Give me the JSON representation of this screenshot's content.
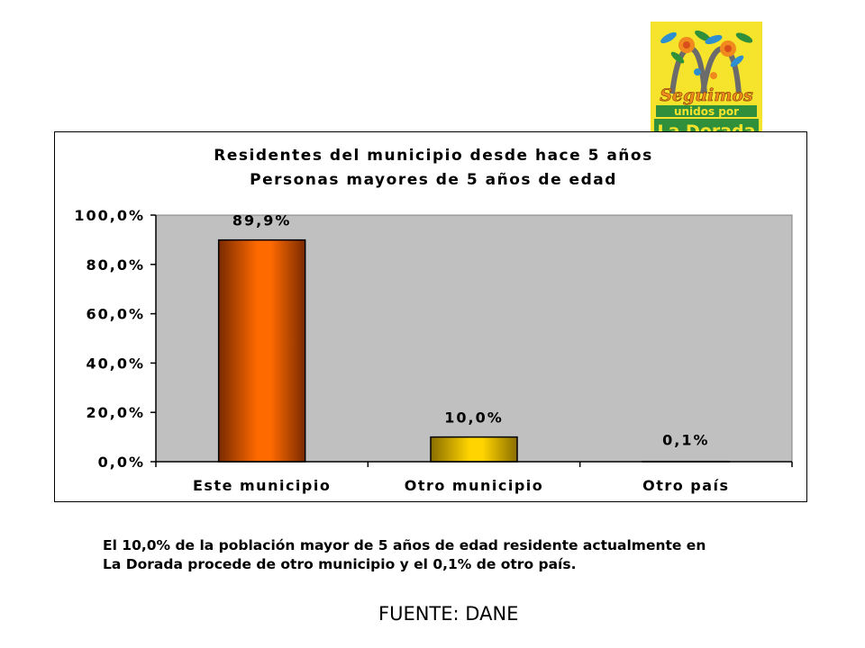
{
  "logo": {
    "line1": "Seguimos",
    "line2": "unidos por",
    "line3": "La Dorada",
    "colors": {
      "background": "#f6e32b",
      "green": "#2f8f3a",
      "orange": "#f08a1e",
      "blue": "#2e8fd0"
    }
  },
  "chart_data": {
    "type": "bar",
    "title": "Residentes del municipio desde hace 5 años",
    "subtitle": "Personas mayores de 5 años de edad",
    "categories": [
      "Este municipio",
      "Otro municipio",
      "Otro país"
    ],
    "values": [
      89.9,
      10.0,
      0.1
    ],
    "data_labels": [
      "89,9%",
      "10,0%",
      "0,1%"
    ],
    "y_ticks": [
      0,
      20,
      40,
      60,
      80,
      100
    ],
    "y_tick_labels": [
      "0,0%",
      "20,0%",
      "40,0%",
      "60,0%",
      "80,0%",
      "100,0%"
    ],
    "ylim": [
      0,
      100
    ],
    "legend": "none",
    "grid": false,
    "colors": {
      "plot_background": "#c0c0c0",
      "bar1_light": "#ff6a00",
      "bar1_dark": "#7a2a00",
      "bar2_light": "#ffd400",
      "bar2_dark": "#8a6d00"
    }
  },
  "caption": {
    "line1": "El 10,0% de la población mayor de 5 años de edad residente actualmente en",
    "line2": "La Dorada procede de otro municipio y el 0,1% de otro país."
  },
  "source": "FUENTE: DANE"
}
